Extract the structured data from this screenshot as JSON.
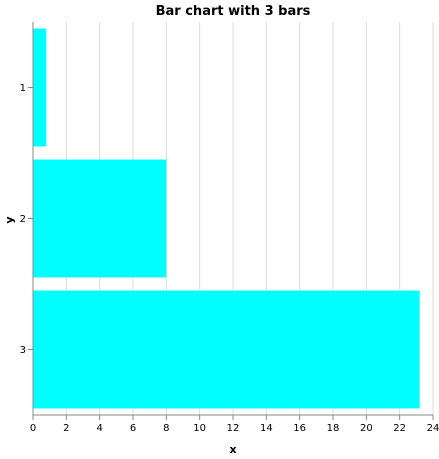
{
  "chart_data": {
    "type": "bar",
    "orientation": "horizontal",
    "title": "Bar chart with 3 bars",
    "xlabel": "x",
    "ylabel": "y",
    "categories": [
      "1",
      "2",
      "3"
    ],
    "values": [
      0.8,
      8.0,
      23.2
    ],
    "xlim": [
      0,
      24
    ],
    "x_ticks": [
      0,
      2,
      4,
      6,
      8,
      10,
      12,
      14,
      16,
      18,
      20,
      22,
      24
    ],
    "grid": true,
    "bar_color": "#00ffff"
  }
}
